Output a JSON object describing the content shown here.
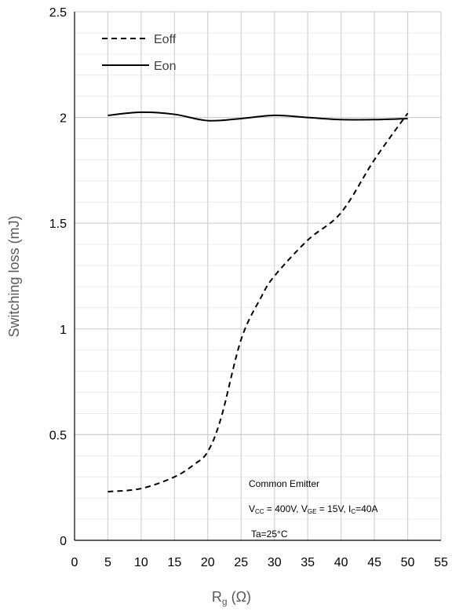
{
  "chart_data": {
    "type": "line",
    "title": "",
    "xlabel": "R",
    "xlabel_sub": "g",
    "xlabel_unit": " (Ω)",
    "ylabel": "Switching loss (mJ)",
    "xlim": [
      0,
      55
    ],
    "ylim": [
      0,
      2.5
    ],
    "xticks": [
      0,
      5,
      10,
      15,
      20,
      25,
      30,
      35,
      40,
      45,
      50,
      55
    ],
    "yticks": [
      0,
      0.5,
      1,
      1.5,
      2,
      2.5
    ],
    "ytick_labels": [
      "0",
      "0.5",
      "1",
      "1.5",
      "2",
      "2.5"
    ],
    "grid": true,
    "legend_position": "top-left",
    "series": [
      {
        "name": "Eoff",
        "style": "dashed",
        "color": "#000000",
        "x": [
          5,
          10,
          15,
          18,
          20,
          22,
          25,
          28,
          30,
          35,
          40,
          45,
          50
        ],
        "y": [
          0.23,
          0.245,
          0.3,
          0.36,
          0.42,
          0.58,
          0.95,
          1.15,
          1.25,
          1.42,
          1.55,
          1.8,
          2.02
        ]
      },
      {
        "name": "Eon",
        "style": "solid",
        "color": "#000000",
        "x": [
          5,
          10,
          15,
          20,
          25,
          30,
          35,
          40,
          45,
          50
        ],
        "y": [
          2.01,
          2.025,
          2.015,
          1.985,
          1.995,
          2.01,
          2.0,
          1.99,
          1.99,
          1.995
        ]
      }
    ],
    "annotation": {
      "line1": "Common Emitter",
      "line2": {
        "v1": "V",
        "v1_sub": "CC",
        "v1_rest": " = 400V, ",
        "v2": "V",
        "v2_sub": "GE",
        "v2_rest": " = 15V, ",
        "i": "I",
        "i_sub": "C",
        "i_rest": "=40A"
      },
      "line3": "Ta=25°C"
    }
  }
}
